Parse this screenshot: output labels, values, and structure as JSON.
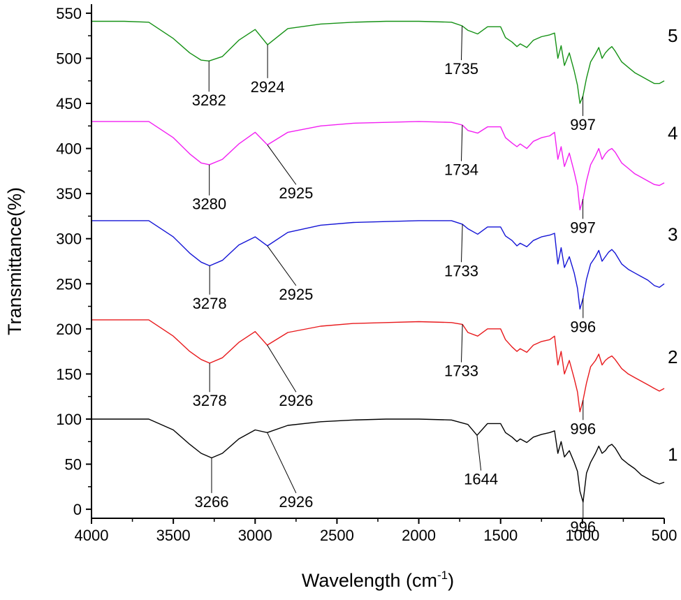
{
  "chart_data": {
    "type": "line",
    "title": "",
    "xlabel": "Wavelength (cm",
    "xlabel_sup": "-1",
    "xlabel_close": ")",
    "ylabel": "Transmittance(%)",
    "xlim": [
      4000,
      500
    ],
    "ylim": [
      -10,
      560
    ],
    "x_ticks": [
      4000,
      3500,
      3000,
      2500,
      2000,
      1500,
      1000,
      500
    ],
    "x_tick_labels": [
      "4000",
      "3500",
      "3000",
      "2500",
      "2000",
      "1500",
      "1000",
      "500"
    ],
    "y_ticks": [
      0,
      50,
      100,
      150,
      200,
      250,
      300,
      350,
      400,
      450,
      500,
      550
    ],
    "y_tick_labels": [
      "0",
      "50",
      "100",
      "150",
      "200",
      "250",
      "300",
      "350",
      "400",
      "450",
      "500",
      "550"
    ],
    "grid": false,
    "legend": "none",
    "series": [
      {
        "label": "1",
        "color": "#000000",
        "x": [
          4000,
          3800,
          3650,
          3500,
          3400,
          3330,
          3266,
          3200,
          3100,
          3000,
          2926,
          2800,
          2600,
          2400,
          2200,
          2000,
          1800,
          1700,
          1644,
          1580,
          1500,
          1470,
          1430,
          1400,
          1380,
          1340,
          1300,
          1250,
          1200,
          1170,
          1150,
          1130,
          1110,
          1080,
          1050,
          1030,
          1015,
          996,
          975,
          950,
          920,
          900,
          880,
          860,
          840,
          820,
          800,
          760,
          720,
          680,
          640,
          600,
          560,
          530,
          500
        ],
        "y": [
          100,
          100,
          100,
          88,
          72,
          62,
          57,
          62,
          78,
          88,
          85,
          93,
          97,
          99,
          100,
          100,
          99,
          94,
          82,
          95,
          95,
          85,
          80,
          75,
          78,
          74,
          80,
          83,
          85,
          87,
          62,
          75,
          58,
          65,
          52,
          42,
          20,
          8,
          40,
          52,
          62,
          70,
          62,
          65,
          70,
          72,
          68,
          56,
          50,
          45,
          38,
          34,
          30,
          28,
          30
        ]
      },
      {
        "label": "2",
        "color": "#e8191c",
        "x": [
          4000,
          3800,
          3650,
          3500,
          3400,
          3330,
          3278,
          3200,
          3100,
          3000,
          2926,
          2800,
          2600,
          2400,
          2200,
          2000,
          1800,
          1733,
          1700,
          1640,
          1580,
          1500,
          1470,
          1430,
          1400,
          1380,
          1340,
          1300,
          1250,
          1200,
          1170,
          1150,
          1130,
          1110,
          1080,
          1050,
          1030,
          1015,
          996,
          975,
          950,
          920,
          900,
          880,
          860,
          840,
          820,
          800,
          760,
          720,
          680,
          640,
          600,
          560,
          530,
          500
        ],
        "y": [
          210,
          210,
          210,
          192,
          175,
          166,
          162,
          168,
          185,
          197,
          182,
          196,
          203,
          206,
          207,
          208,
          207,
          205,
          196,
          192,
          200,
          200,
          188,
          180,
          175,
          178,
          174,
          182,
          186,
          188,
          192,
          160,
          175,
          150,
          165,
          145,
          130,
          108,
          121,
          140,
          158,
          165,
          172,
          160,
          165,
          168,
          170,
          166,
          156,
          150,
          146,
          142,
          138,
          134,
          131,
          134
        ]
      },
      {
        "label": "3",
        "color": "#1414d6",
        "x": [
          4000,
          3800,
          3650,
          3500,
          3400,
          3330,
          3278,
          3200,
          3100,
          3000,
          2925,
          2800,
          2600,
          2400,
          2200,
          2000,
          1800,
          1733,
          1700,
          1640,
          1580,
          1500,
          1470,
          1430,
          1400,
          1380,
          1340,
          1300,
          1250,
          1200,
          1170,
          1150,
          1130,
          1110,
          1080,
          1050,
          1030,
          1015,
          996,
          975,
          950,
          920,
          900,
          880,
          860,
          840,
          820,
          800,
          760,
          720,
          680,
          640,
          600,
          560,
          530,
          500
        ],
        "y": [
          320,
          320,
          320,
          302,
          284,
          274,
          270,
          276,
          293,
          302,
          292,
          307,
          315,
          318,
          319,
          320,
          320,
          316,
          311,
          305,
          313,
          313,
          303,
          298,
          292,
          295,
          291,
          298,
          302,
          304,
          306,
          272,
          290,
          268,
          280,
          262,
          245,
          222,
          234,
          255,
          272,
          280,
          287,
          275,
          280,
          285,
          288,
          284,
          272,
          266,
          262,
          258,
          254,
          248,
          246,
          250
        ]
      },
      {
        "label": "4",
        "color": "#f21ef2",
        "x": [
          4000,
          3800,
          3650,
          3500,
          3400,
          3330,
          3280,
          3200,
          3100,
          3000,
          2925,
          2800,
          2600,
          2400,
          2200,
          2000,
          1800,
          1734,
          1700,
          1640,
          1580,
          1500,
          1470,
          1430,
          1400,
          1380,
          1340,
          1300,
          1250,
          1200,
          1170,
          1150,
          1130,
          1110,
          1080,
          1050,
          1030,
          1015,
          996,
          975,
          950,
          920,
          900,
          880,
          860,
          840,
          820,
          800,
          760,
          720,
          680,
          640,
          600,
          560,
          530,
          500
        ],
        "y": [
          430,
          430,
          430,
          412,
          394,
          384,
          382,
          388,
          405,
          418,
          404,
          418,
          425,
          428,
          429,
          430,
          429,
          426,
          420,
          417,
          424,
          424,
          412,
          406,
          402,
          405,
          400,
          408,
          412,
          414,
          418,
          388,
          402,
          380,
          395,
          374,
          358,
          332,
          344,
          364,
          382,
          392,
          400,
          388,
          394,
          398,
          400,
          396,
          384,
          378,
          372,
          368,
          364,
          360,
          359,
          362
        ]
      },
      {
        "label": "5",
        "color": "#159115",
        "x": [
          4000,
          3800,
          3650,
          3500,
          3400,
          3330,
          3282,
          3200,
          3100,
          3000,
          2924,
          2800,
          2600,
          2400,
          2200,
          2000,
          1800,
          1735,
          1700,
          1640,
          1580,
          1500,
          1470,
          1430,
          1400,
          1380,
          1340,
          1300,
          1250,
          1200,
          1170,
          1150,
          1130,
          1110,
          1080,
          1050,
          1030,
          1015,
          997,
          975,
          950,
          920,
          900,
          880,
          860,
          840,
          820,
          800,
          760,
          720,
          680,
          640,
          600,
          560,
          530,
          500
        ],
        "y": [
          541,
          541,
          540,
          522,
          506,
          498,
          497,
          502,
          520,
          532,
          515,
          533,
          538,
          540,
          541,
          541,
          540,
          536,
          531,
          527,
          535,
          535,
          523,
          518,
          513,
          516,
          512,
          520,
          524,
          526,
          528,
          500,
          514,
          492,
          506,
          486,
          470,
          450,
          458,
          478,
          496,
          505,
          512,
          500,
          506,
          510,
          513,
          508,
          496,
          490,
          484,
          480,
          476,
          472,
          472,
          475
        ]
      }
    ],
    "annotations": [
      {
        "text": "3266",
        "x": 3266,
        "y": 57,
        "lx": 3266,
        "ly": 18
      },
      {
        "text": "2926",
        "x": 2926,
        "y": 85,
        "lx": 2750,
        "ly": 18
      },
      {
        "text": "1644",
        "x": 1644,
        "y": 82,
        "lx": 1620,
        "ly": 43
      },
      {
        "text": "996",
        "x": 996,
        "y": 8,
        "lx": 996,
        "ly": -10
      },
      {
        "text": "3278",
        "x": 3278,
        "y": 162,
        "lx": 3278,
        "ly": 130
      },
      {
        "text": "2926",
        "x": 2926,
        "y": 182,
        "lx": 2750,
        "ly": 130
      },
      {
        "text": "1733",
        "x": 1733,
        "y": 205,
        "lx": 1740,
        "ly": 163
      },
      {
        "text": "996",
        "x": 996,
        "y": 121,
        "lx": 996,
        "ly": 99
      },
      {
        "text": "3278",
        "x": 3278,
        "y": 270,
        "lx": 3278,
        "ly": 238
      },
      {
        "text": "2925",
        "x": 2925,
        "y": 292,
        "lx": 2750,
        "ly": 248
      },
      {
        "text": "1733",
        "x": 1733,
        "y": 316,
        "lx": 1740,
        "ly": 274
      },
      {
        "text": "996",
        "x": 996,
        "y": 234,
        "lx": 996,
        "ly": 212
      },
      {
        "text": "3280",
        "x": 3280,
        "y": 382,
        "lx": 3280,
        "ly": 348
      },
      {
        "text": "2925",
        "x": 2925,
        "y": 404,
        "lx": 2750,
        "ly": 360
      },
      {
        "text": "1734",
        "x": 1734,
        "y": 426,
        "lx": 1740,
        "ly": 386
      },
      {
        "text": "997",
        "x": 997,
        "y": 344,
        "lx": 997,
        "ly": 322
      },
      {
        "text": "3282",
        "x": 3282,
        "y": 497,
        "lx": 3282,
        "ly": 463
      },
      {
        "text": "2924",
        "x": 2924,
        "y": 515,
        "lx": 2924,
        "ly": 478
      },
      {
        "text": "1735",
        "x": 1735,
        "y": 536,
        "lx": 1740,
        "ly": 498
      },
      {
        "text": "997",
        "x": 997,
        "y": 458,
        "lx": 997,
        "ly": 436
      }
    ],
    "curve_labels": [
      {
        "text": "1",
        "x": 550,
        "y": 54
      },
      {
        "text": "2",
        "x": 550,
        "y": 162
      },
      {
        "text": "3",
        "x": 550,
        "y": 298
      },
      {
        "text": "4",
        "x": 550,
        "y": 410
      },
      {
        "text": "5",
        "x": 550,
        "y": 518
      }
    ]
  }
}
